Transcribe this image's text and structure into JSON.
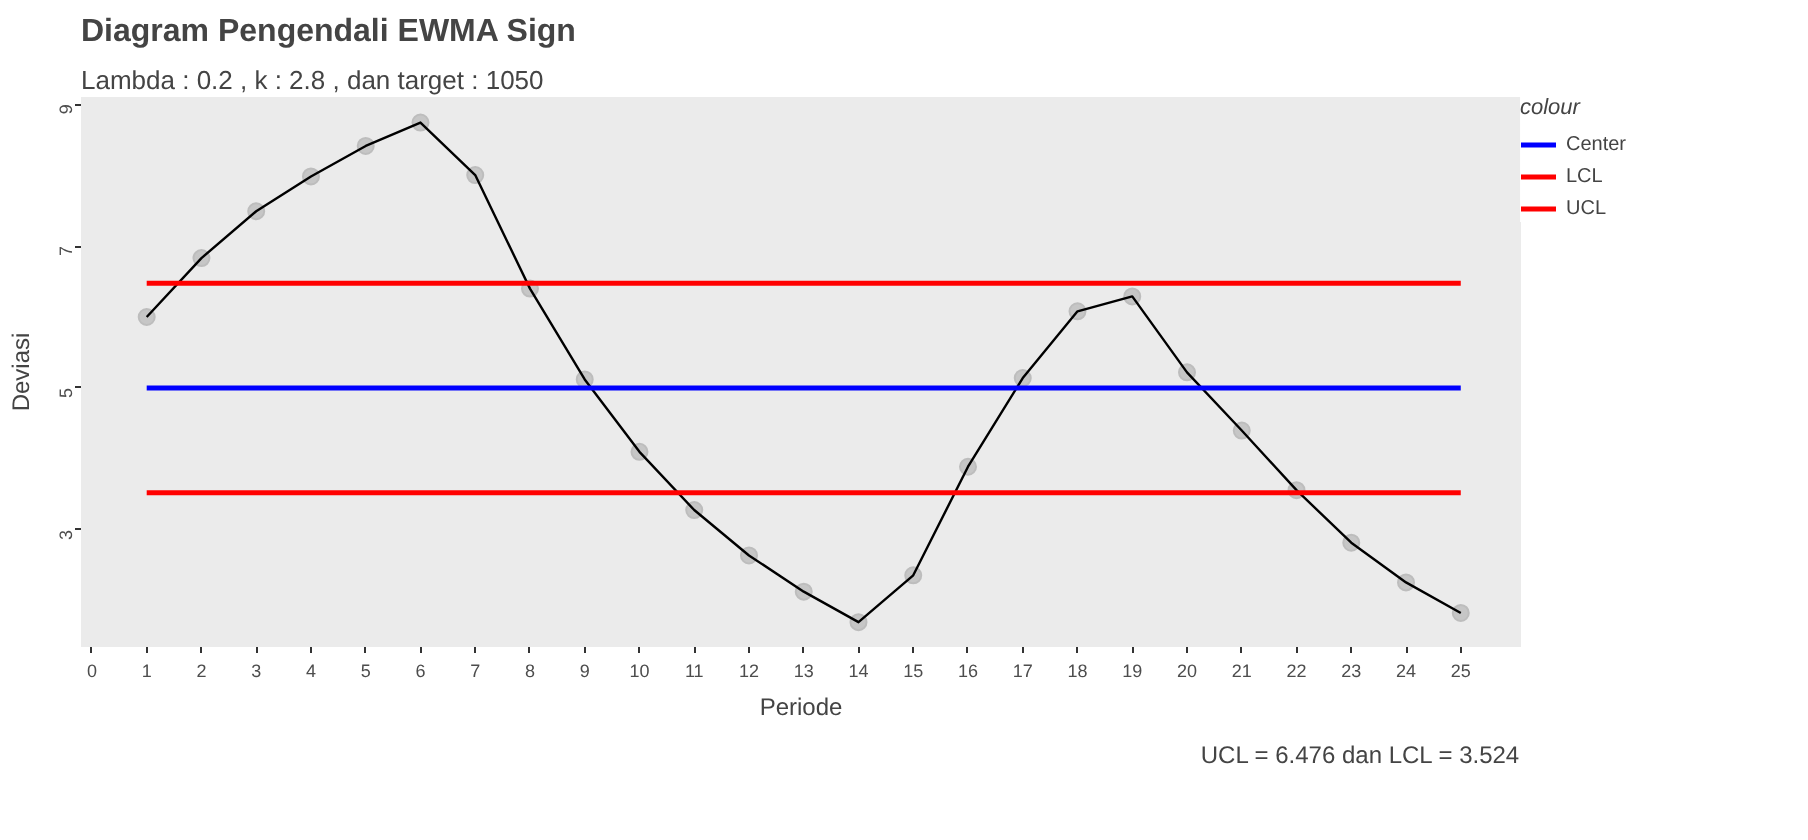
{
  "chart_data": {
    "type": "line",
    "title": "Diagram Pengendali EWMA Sign",
    "subtitle": "Lambda : 0.2 ,  k : 2.8 , dan target : 1050",
    "xlabel": "Periode",
    "ylabel": "Deviasi",
    "legend_title": "colour",
    "annotations": [
      "UCL = 6.476 dan LCL = 3.524"
    ],
    "x": [
      1,
      2,
      3,
      4,
      5,
      6,
      7,
      8,
      9,
      10,
      11,
      12,
      13,
      14,
      15,
      16,
      17,
      18,
      19,
      20,
      21,
      22,
      23,
      24,
      25
    ],
    "series": [
      {
        "type": "scatter",
        "marker": "circle",
        "color": "#bdbdbd",
        "values": [
          6.0,
          6.83,
          7.49,
          7.98,
          8.41,
          8.74,
          8.0,
          6.4,
          5.12,
          4.1,
          3.28,
          2.64,
          2.13,
          1.7,
          2.36,
          3.89,
          5.14,
          6.08,
          6.29,
          5.22,
          4.4,
          3.56,
          2.82,
          2.26,
          1.83
        ]
      },
      {
        "color": "#000000",
        "values": [
          6.0,
          6.83,
          7.49,
          7.98,
          8.41,
          8.74,
          8.0,
          6.4,
          5.12,
          4.1,
          3.28,
          2.64,
          2.13,
          1.7,
          2.36,
          3.89,
          5.14,
          6.08,
          6.29,
          5.22,
          4.4,
          3.56,
          2.82,
          2.26,
          1.83
        ]
      },
      {
        "name": "Center",
        "color": "#0000ff",
        "values": [
          5,
          5,
          5,
          5,
          5,
          5,
          5,
          5,
          5,
          5,
          5,
          5,
          5,
          5,
          5,
          5,
          5,
          5,
          5,
          5,
          5,
          5,
          5,
          5,
          5
        ]
      },
      {
        "name": "LCL",
        "color": "#ff0000",
        "values": [
          3.524,
          3.524,
          3.524,
          3.524,
          3.524,
          3.524,
          3.524,
          3.524,
          3.524,
          3.524,
          3.524,
          3.524,
          3.524,
          3.524,
          3.524,
          3.524,
          3.524,
          3.524,
          3.524,
          3.524,
          3.524,
          3.524,
          3.524,
          3.524,
          3.524
        ]
      },
      {
        "name": "UCL",
        "color": "#ff0000",
        "values": [
          6.476,
          6.476,
          6.476,
          6.476,
          6.476,
          6.476,
          6.476,
          6.476,
          6.476,
          6.476,
          6.476,
          6.476,
          6.476,
          6.476,
          6.476,
          6.476,
          6.476,
          6.476,
          6.476,
          6.476,
          6.476,
          6.476,
          6.476,
          6.476,
          6.476
        ]
      }
    ],
    "legend": "right",
    "grid": false,
    "xlim": [
      -0.2,
      26.1
    ],
    "xticks": [
      0,
      1,
      2,
      3,
      4,
      5,
      6,
      7,
      8,
      9,
      10,
      11,
      12,
      13,
      14,
      15,
      16,
      17,
      18,
      19,
      20,
      21,
      22,
      23,
      24,
      25
    ],
    "ylim": [
      1.35,
      9.1
    ],
    "yticks": [
      3,
      5,
      7,
      9
    ]
  }
}
